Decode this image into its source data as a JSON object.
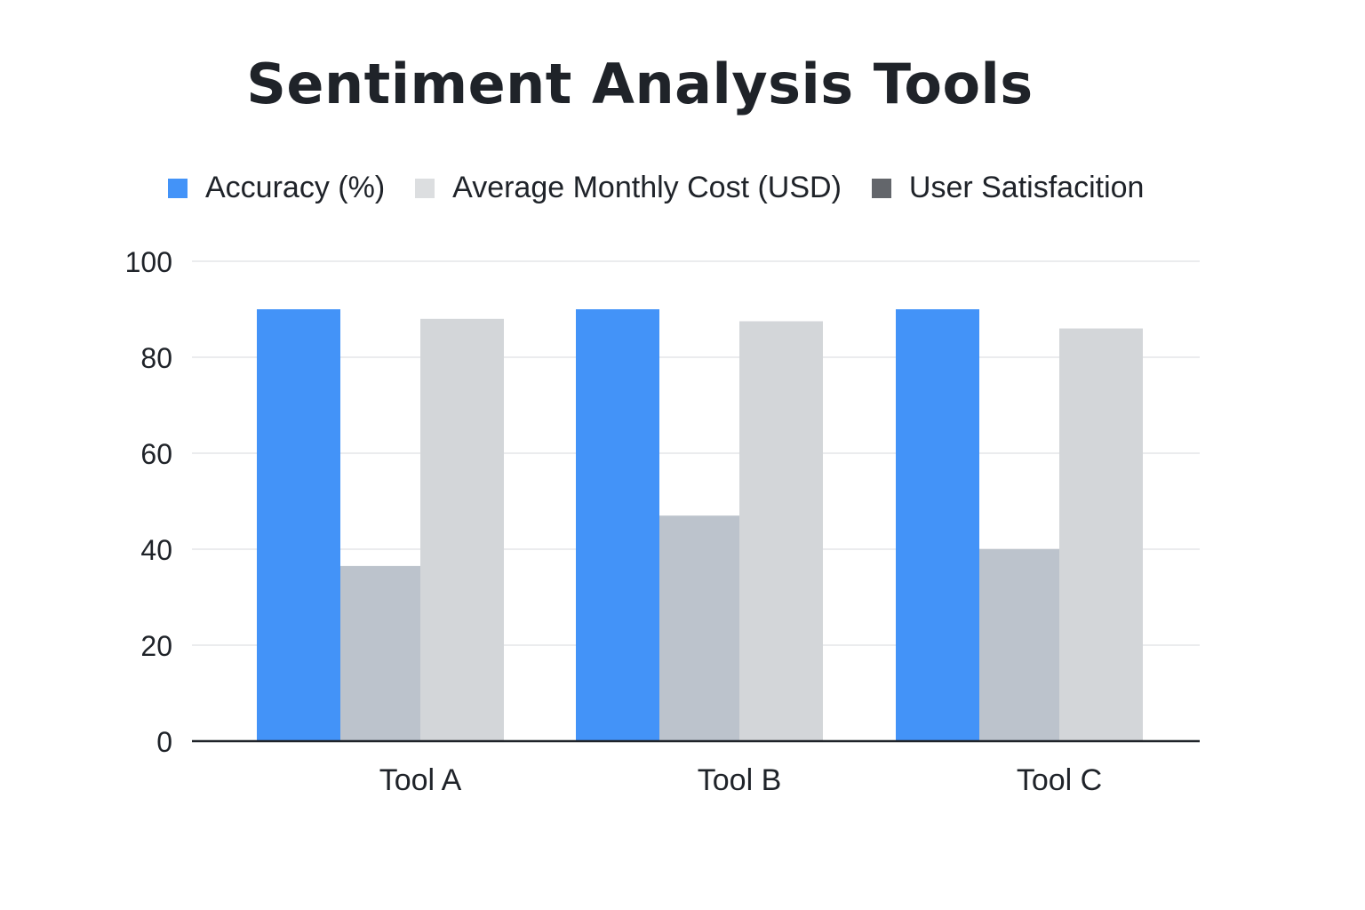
{
  "chart_data": {
    "type": "bar",
    "title": "Sentiment Analysis Tools",
    "categories": [
      "Tool A",
      "Tool B",
      "Tool C"
    ],
    "series": [
      {
        "name": "Accuracy (%)",
        "color": "#4393f8",
        "values": [
          90,
          90,
          90
        ]
      },
      {
        "name": "User Satisfacition",
        "color": "#bcc3cc",
        "values": [
          36.5,
          47,
          40
        ]
      },
      {
        "name": "Average Monthly Cost (USD)",
        "color": "#d3d6d9",
        "values": [
          88,
          87.5,
          86
        ]
      }
    ],
    "legend": [
      {
        "label": "Accuracy (%)",
        "color": "#4393f8"
      },
      {
        "label": "Average Monthly Cost (USD)",
        "color": "#dcdee0"
      },
      {
        "label": "User Satisfacition",
        "color": "#63666b"
      }
    ],
    "legend_position": "top",
    "ylim": [
      0,
      100
    ],
    "yticks": [
      "0",
      "20",
      "40",
      "60",
      "80",
      "100"
    ],
    "xlabel": "",
    "ylabel": "",
    "grid": true
  }
}
